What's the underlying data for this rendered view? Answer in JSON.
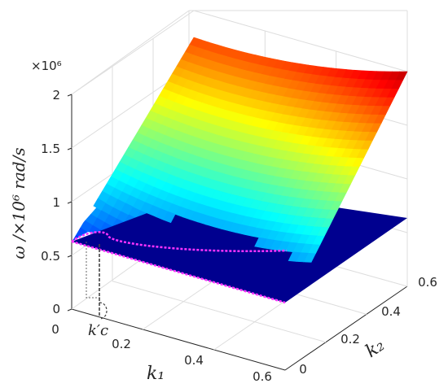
{
  "chart_data": {
    "type": "surface",
    "title": "",
    "exponent_label": "×10⁶",
    "xlabel": "k₁",
    "ylabel": "k₂",
    "zlabel": "ω /×10⁶  rad/s",
    "xlim": [
      0,
      0.6
    ],
    "ylim": [
      0,
      0.6
    ],
    "zlim": [
      0,
      2
    ],
    "x_ticks": [
      "0",
      "0.2",
      "0.4",
      "0.6"
    ],
    "y_ticks": [
      "0",
      "0.2",
      "0.4",
      "0.6"
    ],
    "z_ticks": [
      "0",
      "0.5",
      "1",
      "1.5",
      "2"
    ],
    "grid": true,
    "colormap": "jet",
    "annotation": "k′c",
    "surfaces": [
      {
        "kind": "curved",
        "corner_values": {
          "k1_0_k2_0": 0.62,
          "k1_0.6_k2_0": 0.52,
          "k1_0_k2_0.6": 1.75,
          "k1_0.6_k2_0.6": 2.0
        },
        "valley_k1": 0.35
      },
      {
        "kind": "flat",
        "level": 0.82,
        "color": "#00008f"
      }
    ],
    "intersection_color": "#ff33ff"
  }
}
